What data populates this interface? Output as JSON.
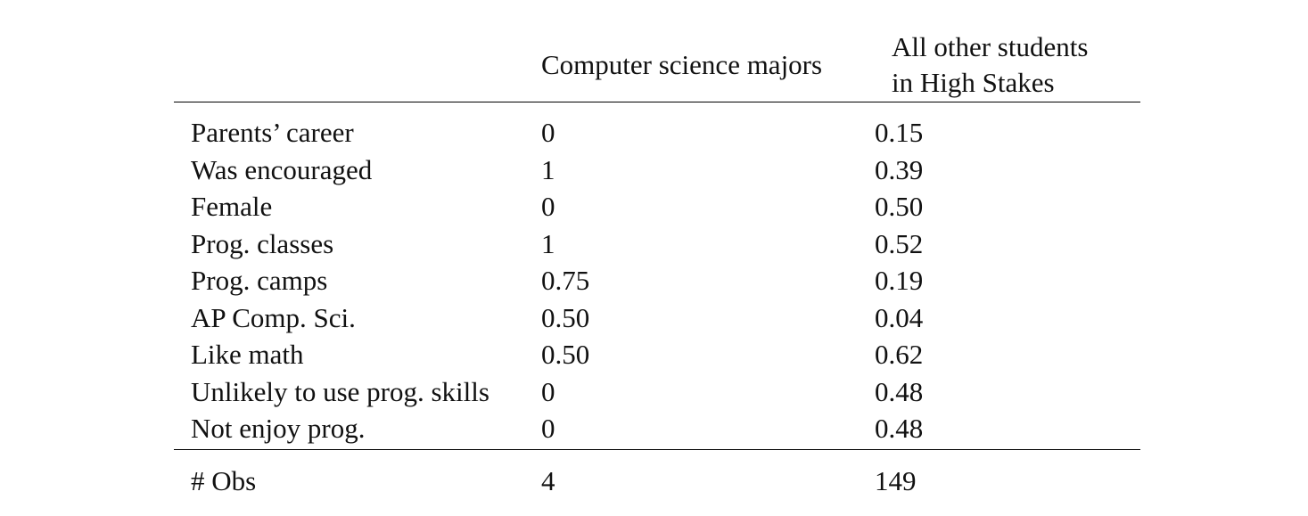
{
  "table": {
    "headers": {
      "col1": "Computer science majors",
      "col2_line1": "All other students",
      "col2_line2": "in High Stakes"
    },
    "rows": [
      {
        "label": "Parents’ career",
        "cs": "0",
        "other": "0.15"
      },
      {
        "label": "Was encouraged",
        "cs": "1",
        "other": "0.39"
      },
      {
        "label": "Female",
        "cs": "0",
        "other": "0.50"
      },
      {
        "label": "Prog. classes",
        "cs": "1",
        "other": "0.52"
      },
      {
        "label": "Prog. camps",
        "cs": "0.75",
        "other": "0.19"
      },
      {
        "label": "AP Comp. Sci.",
        "cs": "0.50",
        "other": "0.04"
      },
      {
        "label": "Like math",
        "cs": "0.50",
        "other": "0.62"
      },
      {
        "label": "Unlikely to use prog. skills",
        "cs": "0",
        "other": "0.48"
      },
      {
        "label": "Not enjoy prog.",
        "cs": "0",
        "other": "0.48"
      }
    ],
    "footer": {
      "label": "# Obs",
      "cs": "4",
      "other": "149"
    }
  }
}
